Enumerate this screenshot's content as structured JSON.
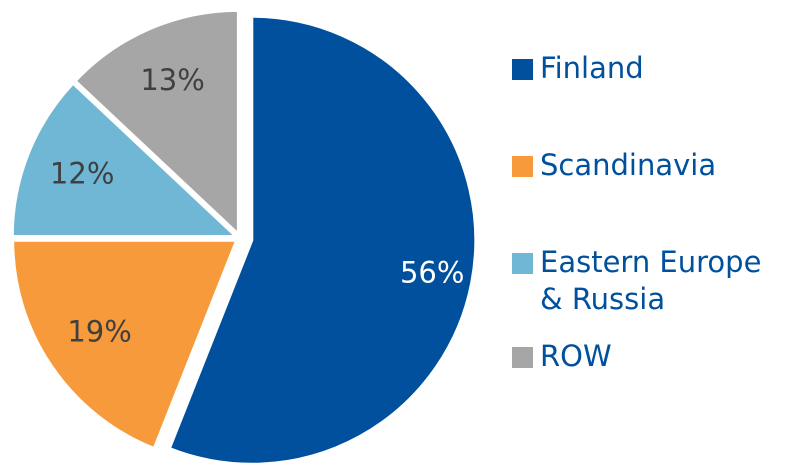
{
  "chart_data": {
    "type": "pie",
    "categories": [
      "Finland",
      "Scandinavia",
      "Eastern Europe & Russia",
      "ROW"
    ],
    "values": [
      56,
      19,
      12,
      13
    ],
    "value_labels": [
      "56%",
      "19%",
      "12%",
      "13%"
    ],
    "colors": [
      "#00509e",
      "#f79a3b",
      "#6fb7d4",
      "#a6a6a6"
    ],
    "legend": "right"
  }
}
